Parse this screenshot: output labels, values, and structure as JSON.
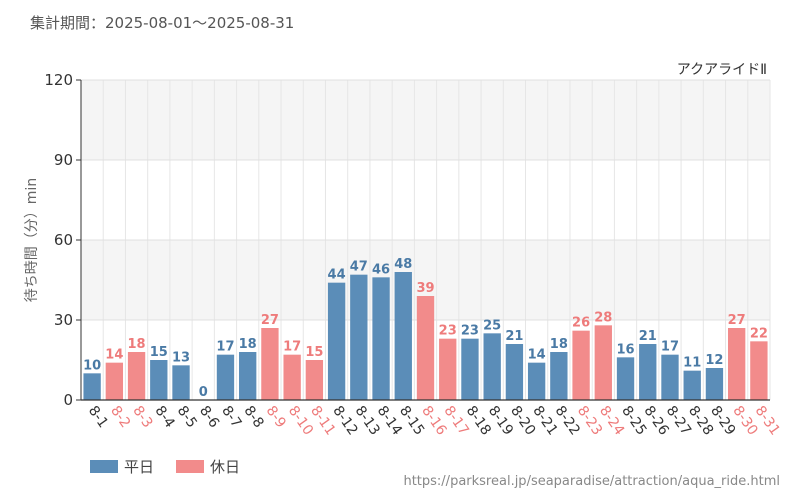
{
  "period_text": "集計期間：2025-08-01～2025-08-31",
  "source_text": "https://parksreal.jp/seaparadise/attraction/aqua_ride.html",
  "legend": [
    {
      "label": "平日",
      "color": "#5b8db8"
    },
    {
      "label": "休日",
      "color": "#f28b8b"
    }
  ],
  "chart_data": {
    "type": "bar",
    "title": "アクアライドⅡ",
    "ylabel": "待ち時間（分）min",
    "xlabel": "",
    "ylim": [
      0,
      120
    ],
    "yticks": [
      0,
      30,
      60,
      90,
      120
    ],
    "grid": true,
    "categories": [
      "8-1",
      "8-2",
      "8-3",
      "8-4",
      "8-5",
      "8-6",
      "8-7",
      "8-8",
      "8-9",
      "8-10",
      "8-11",
      "8-12",
      "8-13",
      "8-14",
      "8-15",
      "8-16",
      "8-17",
      "8-18",
      "8-19",
      "8-20",
      "8-21",
      "8-22",
      "8-23",
      "8-24",
      "8-25",
      "8-26",
      "8-27",
      "8-28",
      "8-29",
      "8-30",
      "8-31"
    ],
    "values": [
      10,
      14,
      18,
      15,
      13,
      0,
      17,
      18,
      27,
      17,
      15,
      44,
      47,
      46,
      48,
      39,
      23,
      23,
      25,
      21,
      14,
      18,
      26,
      28,
      16,
      21,
      17,
      11,
      12,
      27,
      22
    ],
    "day_type": [
      "平日",
      "休日",
      "休日",
      "平日",
      "平日",
      "平日",
      "平日",
      "平日",
      "休日",
      "休日",
      "休日",
      "平日",
      "平日",
      "平日",
      "平日",
      "休日",
      "休日",
      "平日",
      "平日",
      "平日",
      "平日",
      "平日",
      "休日",
      "休日",
      "平日",
      "平日",
      "平日",
      "平日",
      "平日",
      "休日",
      "休日"
    ],
    "colors": {
      "平日": "#5b8db8",
      "休日": "#f28b8b"
    },
    "label_colors": {
      "平日": "#4a7aa5",
      "休日": "#ee7b7b"
    }
  }
}
